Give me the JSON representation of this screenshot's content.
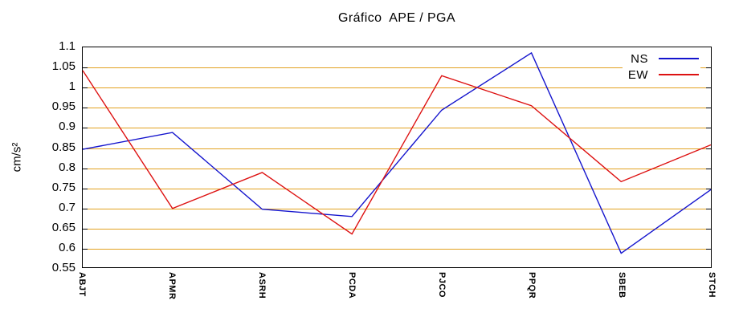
{
  "title": "Gráfico  APE / PGA",
  "chart_data": {
    "type": "line",
    "title": "Gráfico  APE / PGA",
    "xlabel": "",
    "ylabel": "cm/s²",
    "categories": [
      "ABJT",
      "APMR",
      "ASRH",
      "PCDA",
      "PJCO",
      "PPQR",
      "SBEB",
      "STCH"
    ],
    "series": [
      {
        "name": "NS",
        "color": "#1414cd",
        "values": [
          0.845,
          0.887,
          0.695,
          0.677,
          0.943,
          1.086,
          0.585,
          0.744
        ]
      },
      {
        "name": "EW",
        "color": "#dd1111",
        "values": [
          1.042,
          0.697,
          0.787,
          0.633,
          1.029,
          0.954,
          0.764,
          0.856
        ]
      }
    ],
    "ylim": [
      0.55,
      1.1
    ],
    "ytick_step": 0.05,
    "grid": "horizontal",
    "grid_color": "#e2a11f",
    "axis_color": "#000000",
    "background": "#ffffff",
    "legend_position": "top-right-inside"
  }
}
